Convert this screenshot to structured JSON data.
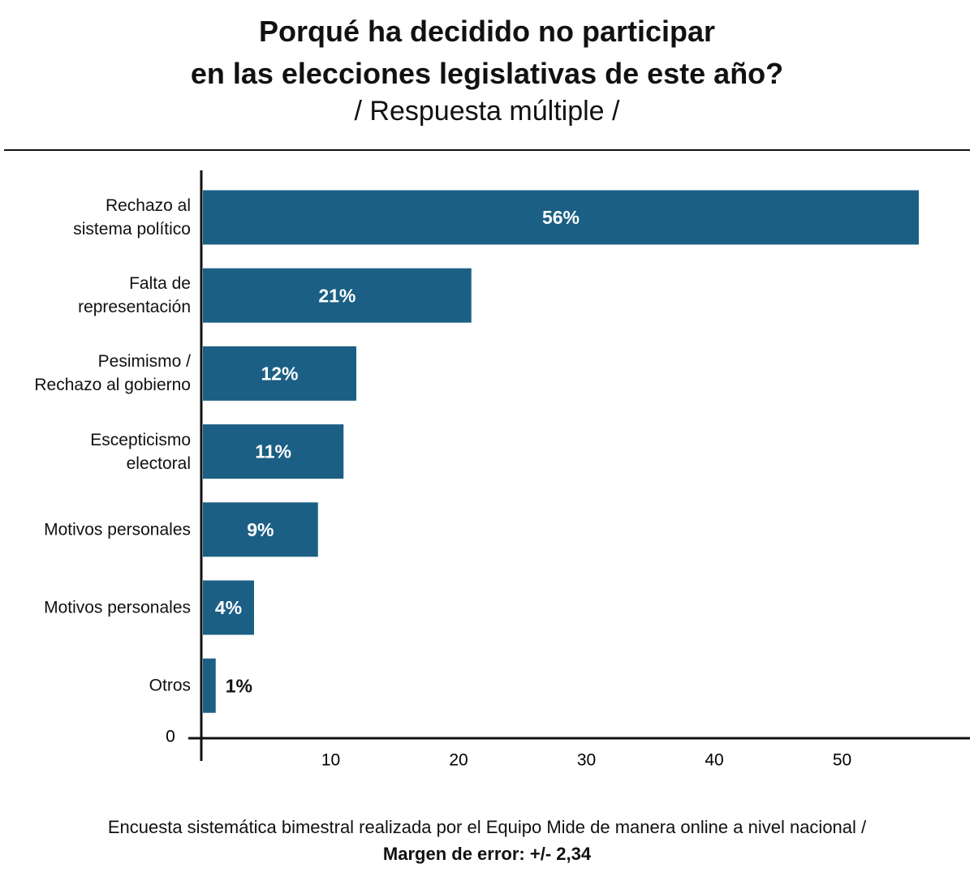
{
  "chart_data": {
    "type": "hbar",
    "title": [
      "Porqué ha decidido no participar",
      "en las elecciones legislativas de este año?"
    ],
    "subtitle": "/ Respuesta múltiple /",
    "categories": [
      "Rechazo al\nsistema político",
      "Falta de\nrepresentación",
      "Pesimismo /\nRechazo al gobierno",
      "Escepticismo\nelectoral",
      "Motivos personales",
      "Motivos personales",
      "Otros"
    ],
    "values": [
      56,
      21,
      12,
      11,
      9,
      4,
      1
    ],
    "value_labels": [
      "56%",
      "21%",
      "12%",
      "11%",
      "9%",
      "4%",
      "1%"
    ],
    "color": "#1b5f84",
    "xlim": [
      0,
      60
    ],
    "xticks": [
      0,
      10,
      20,
      30,
      40,
      50
    ],
    "grid": false,
    "note": "Encuesta sistemática bimestral realizada por el Equipo Mide de manera online a nivel nacional /",
    "note_bold": "Margen de error: +/- 2,34"
  }
}
